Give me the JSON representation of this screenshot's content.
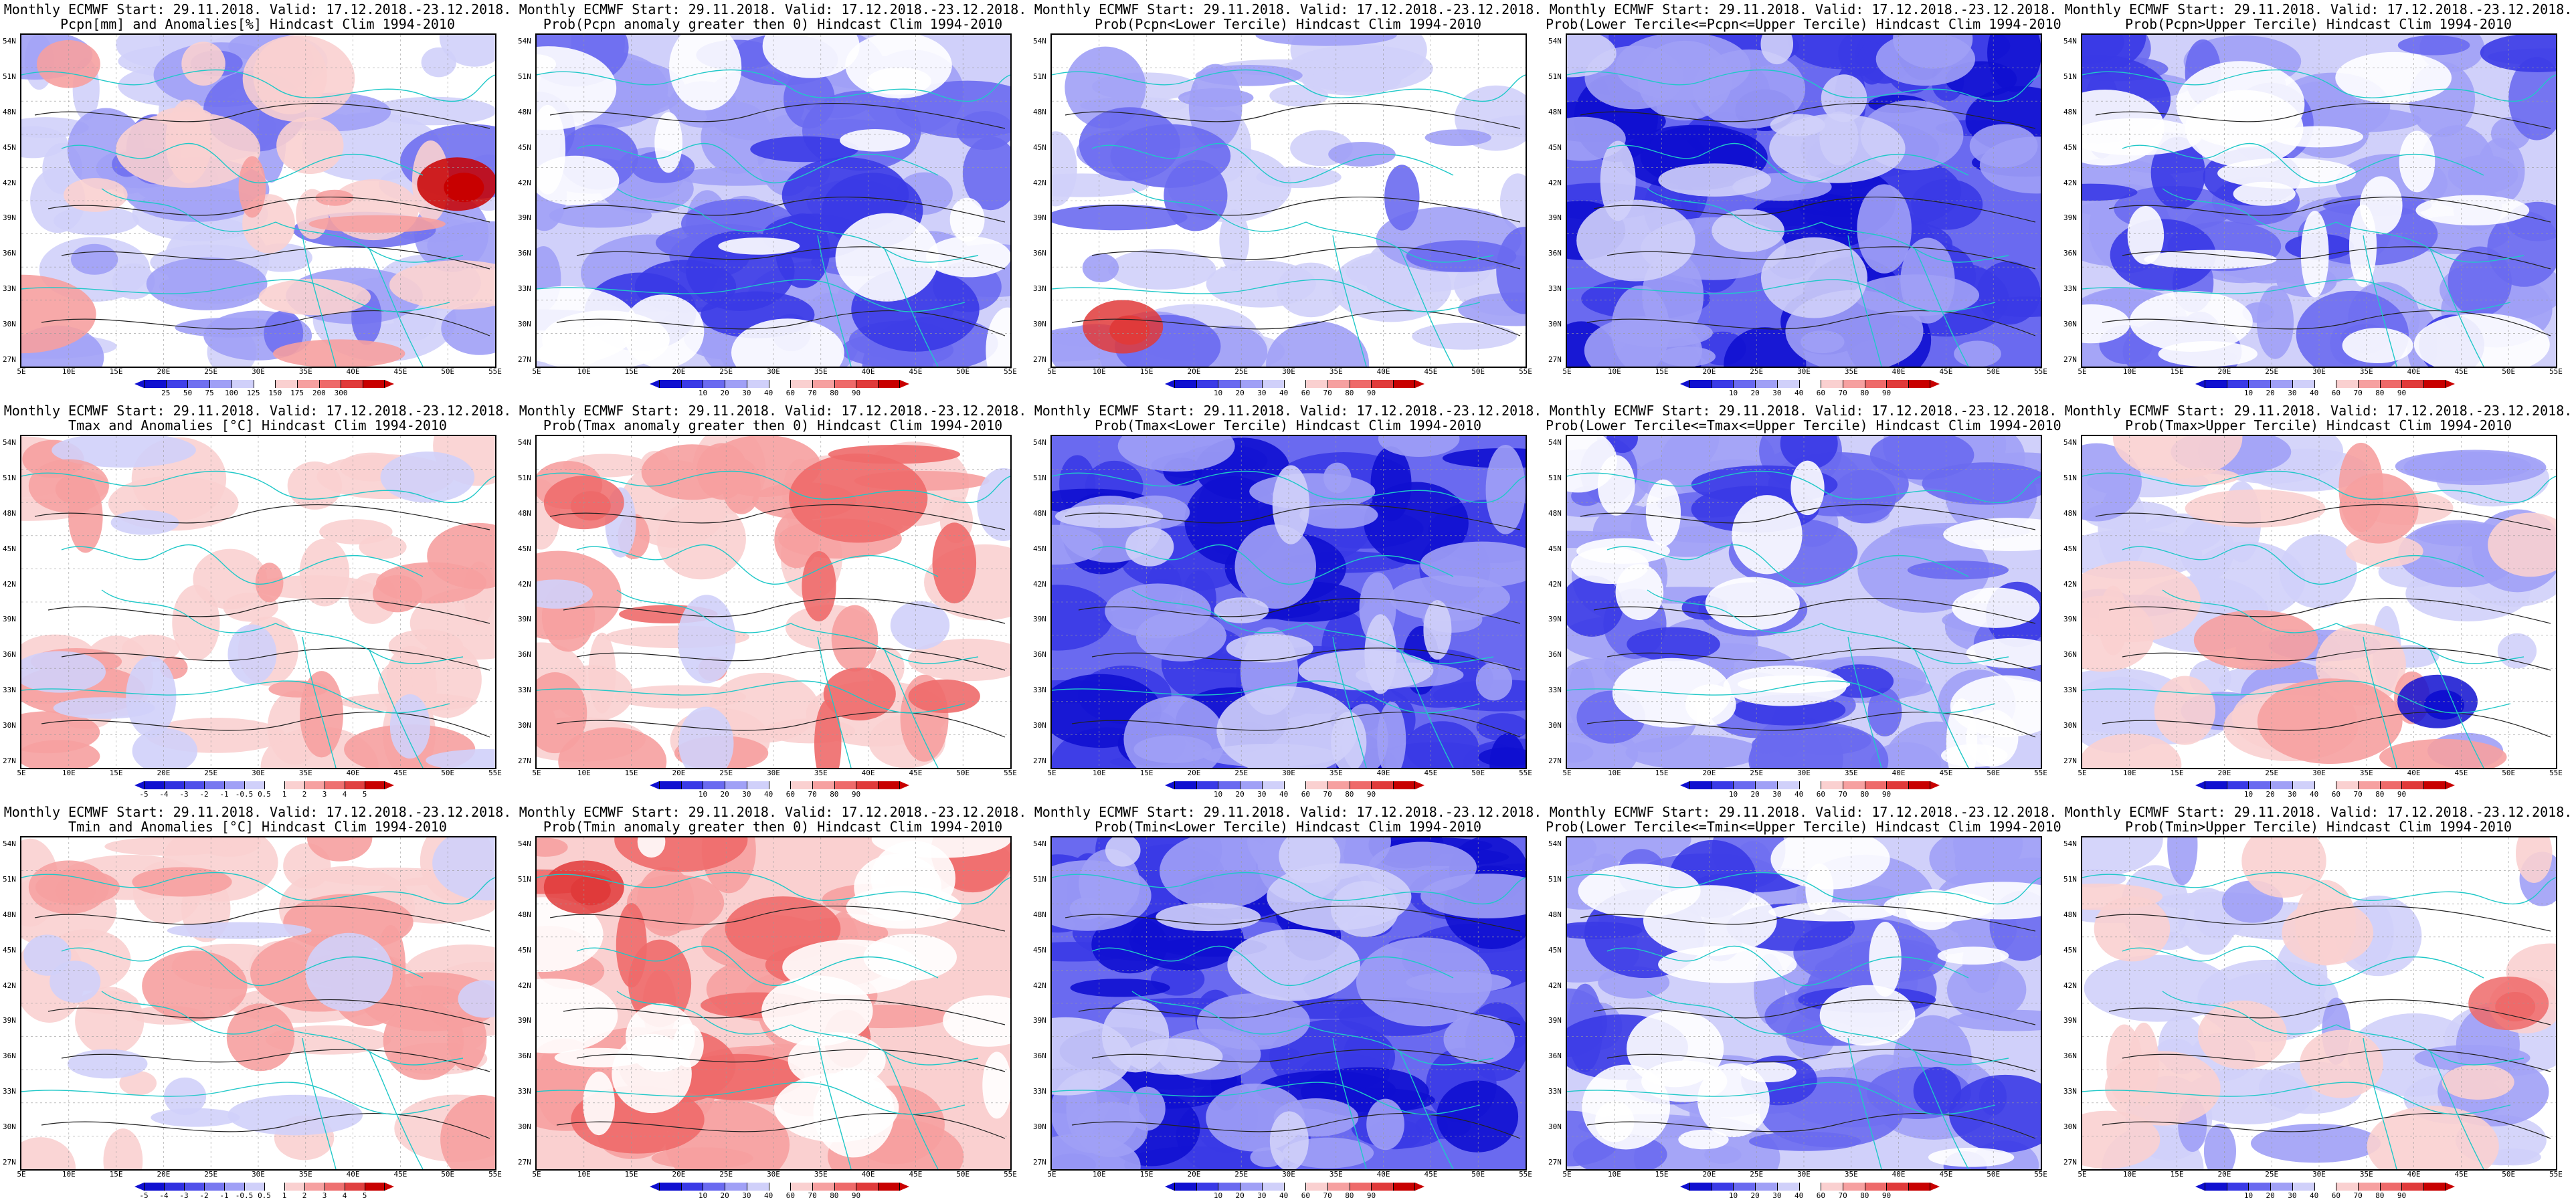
{
  "title_line1": "Monthly ECMWF Start: 29.11.2018. Valid: 17.12.2018.-23.12.2018.",
  "lat_labels": [
    "54N",
    "51N",
    "48N",
    "45N",
    "42N",
    "39N",
    "36N",
    "33N",
    "30N",
    "27N"
  ],
  "lon_labels": [
    "5E",
    "10E",
    "15E",
    "20E",
    "25E",
    "30E",
    "35E",
    "40E",
    "45E",
    "50E",
    "55E"
  ],
  "colorbar_prob": {
    "labels": [
      "10",
      "20",
      "30",
      "40",
      "60",
      "70",
      "80",
      "90"
    ],
    "colors": [
      "#1010d0",
      "#3a3ae6",
      "#6a6af0",
      "#a0a0f6",
      "#d0d0fa",
      "#ffffff",
      "#fad0d0",
      "#f6a0a0",
      "#ee6a6a",
      "#e03a3a",
      "#c80000"
    ]
  },
  "colorbar_precip": {
    "labels": [
      "25",
      "50",
      "75",
      "100",
      "125",
      "150",
      "175",
      "200",
      "300"
    ],
    "colors": [
      "#1010d0",
      "#4040e8",
      "#7070f0",
      "#a0a0f6",
      "#d0d0fa",
      "#ffffff",
      "#fad0d0",
      "#f6a0a0",
      "#ee6a6a",
      "#e03a3a",
      "#c80000"
    ]
  },
  "colorbar_temp": {
    "labels": [
      "-5",
      "-4",
      "-3",
      "-2",
      "-1",
      "-0.5",
      "0.5",
      "1",
      "2",
      "3",
      "4",
      "5"
    ],
    "colors": [
      "#1010d0",
      "#3030e0",
      "#5050ea",
      "#7878f0",
      "#a0a0f6",
      "#d0d0fa",
      "#ffffff",
      "#fad0d0",
      "#f6a0a0",
      "#ee7070",
      "#e04040",
      "#c80000"
    ]
  },
  "panels": [
    {
      "title2": "Pcpn[mm] and Anomalies[%] Hindcast Clim 1994-2010",
      "bar": "precip",
      "palette": "anom_precip"
    },
    {
      "title2": "Prob(Pcpn anomaly greater then 0) Hindcast Clim 1994-2010",
      "bar": "prob",
      "palette": "prob_blue"
    },
    {
      "title2": "Prob(Pcpn<Lower Tercile) Hindcast Clim 1994-2010",
      "bar": "prob",
      "palette": "prob_red_south"
    },
    {
      "title2": "Prob(Lower Tercile<=Pcpn<=Upper Tercile) Hindcast Clim 1994-2010",
      "bar": "prob",
      "palette": "prob_blue_dark"
    },
    {
      "title2": "Prob(Pcpn>Upper Tercile) Hindcast Clim 1994-2010",
      "bar": "prob",
      "palette": "prob_blue"
    },
    {
      "title2": "Tmax and Anomalies [°C] Hindcast Clim 1994-2010",
      "bar": "temp",
      "palette": "anom_warm_west"
    },
    {
      "title2": "Prob(Tmax anomaly greater then 0) Hindcast Clim 1994-2010",
      "bar": "prob",
      "palette": "prob_warm_west"
    },
    {
      "title2": "Prob(Tmax<Lower Tercile) Hindcast Clim 1994-2010",
      "bar": "prob",
      "palette": "prob_blue_dark"
    },
    {
      "title2": "Prob(Lower Tercile<=Tmax<=Upper Tercile) Hindcast Clim 1994-2010",
      "bar": "prob",
      "palette": "prob_blue"
    },
    {
      "title2": "Prob(Tmax>Upper Tercile) Hindcast Clim 1994-2010",
      "bar": "prob",
      "palette": "prob_mixed"
    },
    {
      "title2": "Tmin and Anomalies [°C] Hindcast Clim 1994-2010",
      "bar": "temp",
      "palette": "anom_warm_west"
    },
    {
      "title2": "Prob(Tmin anomaly greater then 0) Hindcast Clim 1994-2010",
      "bar": "prob",
      "palette": "prob_warm_all"
    },
    {
      "title2": "Prob(Tmin<Lower Tercile) Hindcast Clim 1994-2010",
      "bar": "prob",
      "palette": "prob_blue_dark"
    },
    {
      "title2": "Prob(Lower Tercile<=Tmin<=Upper Tercile) Hindcast Clim 1994-2010",
      "bar": "prob",
      "palette": "prob_blue"
    },
    {
      "title2": "Prob(Tmin>Upper Tercile) Hindcast Clim 1994-2010",
      "bar": "prob",
      "palette": "prob_light"
    }
  ]
}
